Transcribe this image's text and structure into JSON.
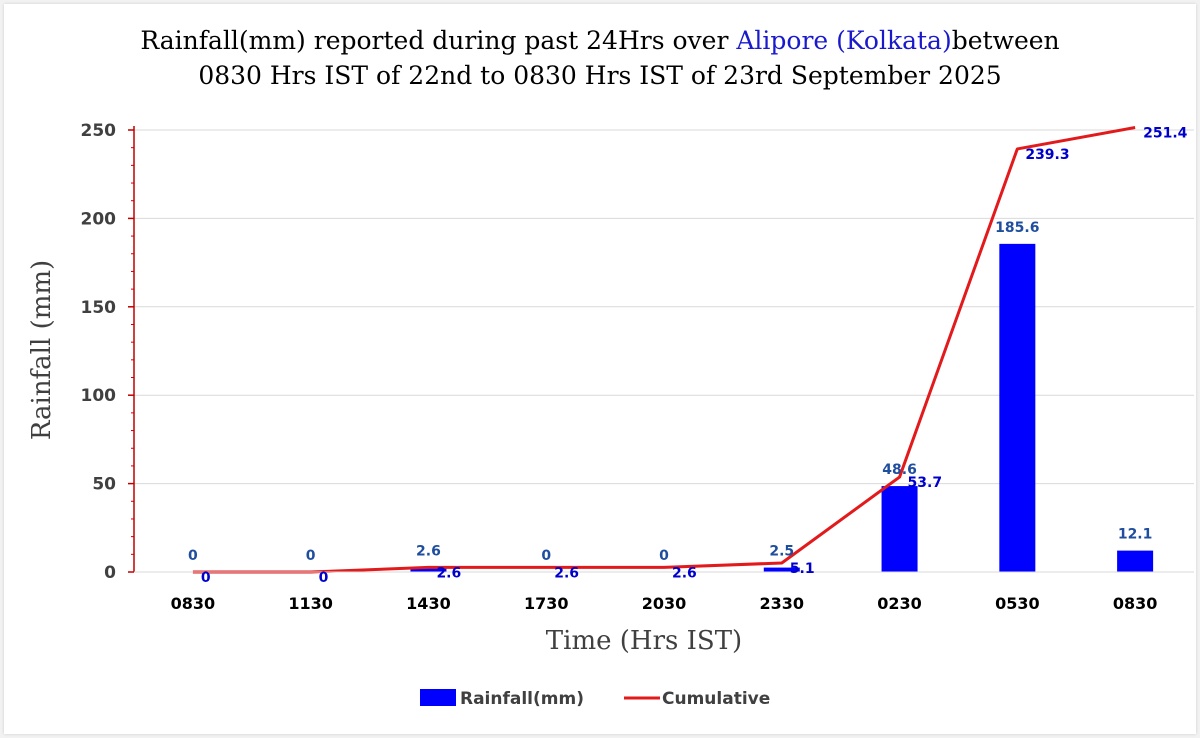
{
  "colors": {
    "bar": "#0000ff",
    "line": "#e31a1c",
    "bar_label": "#1f4e9f",
    "line_label": "#0000cc",
    "title_highlight": "#1a1acc",
    "axis": "#c00000",
    "grid": "#d9d9d9"
  },
  "chart_data": {
    "type": "bar",
    "title": {
      "line1_prefix": "Rainfall(mm) reported during past 24Hrs over ",
      "line1_highlight": "Alipore (Kolkata)",
      "line1_suffix": "between",
      "line2": "0830 Hrs IST of 22nd to 0830 Hrs IST of 23rd September 2025"
    },
    "xlabel": "Time (Hrs IST)",
    "ylabel": "Rainfall (mm)",
    "ylim": [
      0,
      250
    ],
    "yticks": [
      0,
      50,
      100,
      150,
      200,
      250
    ],
    "grid": true,
    "legend_position": "bottom",
    "categories": [
      "0830",
      "1130",
      "1430",
      "1730",
      "2030",
      "2330",
      "0230",
      "0530",
      "0830"
    ],
    "series": [
      {
        "name": "Rainfall(mm)",
        "kind": "bar",
        "values": [
          0,
          0,
          2.6,
          0,
          0,
          2.5,
          48.6,
          185.6,
          12.1
        ],
        "labels": [
          "0",
          "0",
          "2.6",
          "0",
          "0",
          "2.5",
          "48.6",
          "185.6",
          "12.1"
        ]
      },
      {
        "name": "Cumulative",
        "kind": "line",
        "values": [
          0,
          0,
          2.6,
          2.6,
          2.6,
          5.1,
          53.7,
          239.3,
          251.4
        ],
        "labels": [
          "0",
          "0",
          "2.6",
          "2.6",
          "2.6",
          "5.1",
          "53.7",
          "239.3",
          "251.4"
        ]
      }
    ]
  }
}
